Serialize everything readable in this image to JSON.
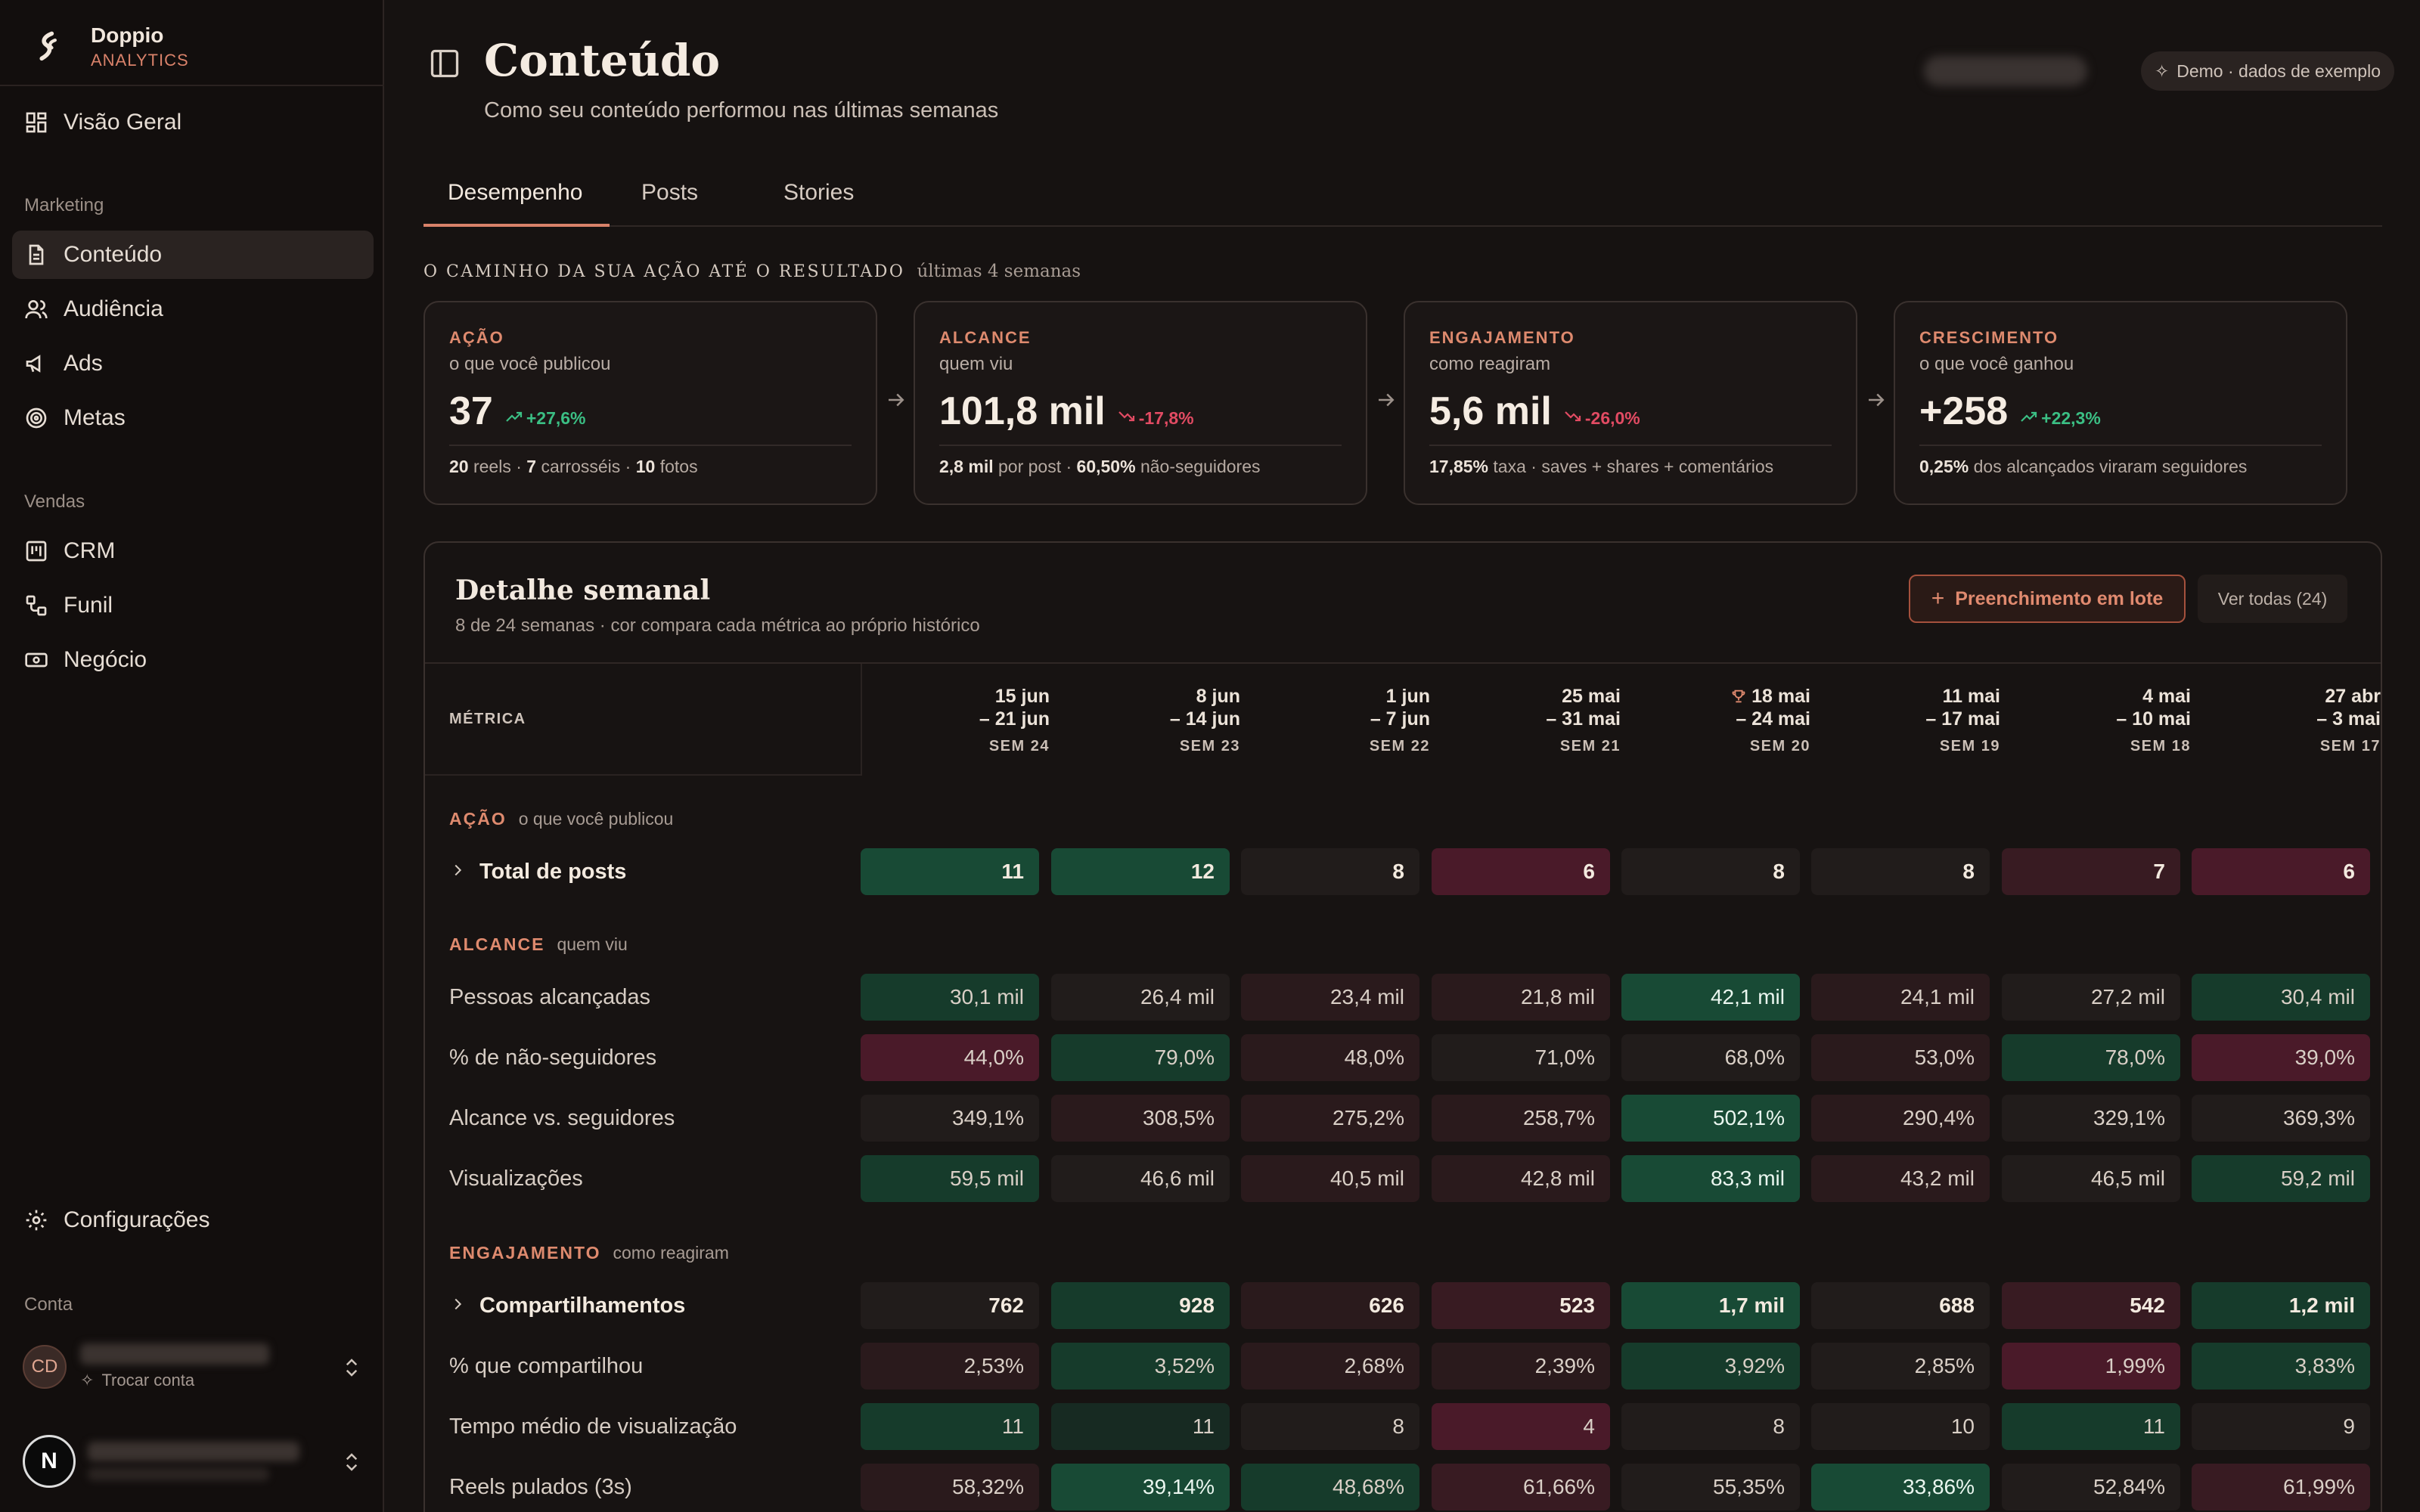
{
  "brand": {
    "name": "Doppio",
    "sub": "ANALYTICS"
  },
  "nav": {
    "overview": "Visão Geral",
    "marketing_label": "Marketing",
    "content": "Conteúdo",
    "audience": "Audiência",
    "ads": "Ads",
    "goals": "Metas",
    "sales_label": "Vendas",
    "crm": "CRM",
    "funnel": "Funil",
    "deal": "Negócio",
    "settings": "Configurações",
    "account_label": "Conta",
    "account_initials": "CD",
    "switch_account": "Trocar conta",
    "user_initial": "N"
  },
  "header": {
    "title": "Conteúdo",
    "subtitle": "Como seu conteúdo performou nas últimas semanas",
    "demo_badge": "Demo · dados de exemplo"
  },
  "tabs": [
    "Desempenho",
    "Posts",
    "Stories"
  ],
  "journey": {
    "caption": "O CAMINHO DA SUA AÇÃO ATÉ O RESULTADO",
    "hint": "últimas 4 semanas",
    "cards": [
      {
        "title": "AÇÃO",
        "sub": "o que você publicou",
        "value": "37",
        "delta": "+27,6%",
        "dir": "up",
        "foot": [
          [
            "20",
            " reels · "
          ],
          [
            "7",
            " carrosséis · "
          ],
          [
            "10",
            " fotos"
          ]
        ]
      },
      {
        "title": "ALCANCE",
        "sub": "quem viu",
        "value": "101,8 mil",
        "delta": "-17,8%",
        "dir": "down",
        "foot": [
          [
            "2,8 mil",
            " por post · "
          ],
          [
            "60,50%",
            " não-seguidores"
          ]
        ]
      },
      {
        "title": "ENGAJAMENTO",
        "sub": "como reagiram",
        "value": "5,6 mil",
        "delta": "-26,0%",
        "dir": "down",
        "foot": [
          [
            "17,85%",
            " taxa · saves + shares + comentários"
          ]
        ]
      },
      {
        "title": "CRESCIMENTO",
        "sub": "o que você ganhou",
        "value": "+258",
        "delta": "+22,3%",
        "dir": "up",
        "foot": [
          [
            "0,25%",
            " dos alcançados viraram seguidores"
          ]
        ]
      }
    ]
  },
  "detail": {
    "title": "Detalhe semanal",
    "subtitle": "8 de 24 semanas · cor compara cada métrica ao próprio histórico",
    "batch_button": "Preenchimento em lote",
    "all_button": "Ver todas (24)",
    "metric_header": "MÉTRICA",
    "weeks": [
      {
        "d1": "15 jun",
        "d2": "– 21 jun",
        "sem": "SEM 24",
        "best": false
      },
      {
        "d1": "8 jun",
        "d2": "– 14 jun",
        "sem": "SEM 23",
        "best": false
      },
      {
        "d1": "1 jun",
        "d2": "– 7 jun",
        "sem": "SEM 22",
        "best": false
      },
      {
        "d1": "25 mai",
        "d2": "– 31 mai",
        "sem": "SEM 21",
        "best": false
      },
      {
        "d1": "18 mai",
        "d2": "– 24 mai",
        "sem": "SEM 20",
        "best": true
      },
      {
        "d1": "11 mai",
        "d2": "– 17 mai",
        "sem": "SEM 19",
        "best": false
      },
      {
        "d1": "4 mai",
        "d2": "– 10 mai",
        "sem": "SEM 18",
        "best": false
      },
      {
        "d1": "27 abr",
        "d2": "– 3 mai",
        "sem": "SEM 17",
        "best": false
      }
    ],
    "groups": [
      {
        "title": "AÇÃO",
        "sub": "o que você publicou",
        "rows": [
          {
            "label": "Total de posts",
            "bold": true,
            "expand": true,
            "values": [
              "11",
              "12",
              "8",
              "6",
              "8",
              "8",
              "7",
              "6"
            ],
            "tones": [
              "g3",
              "g3",
              "n0",
              "r3",
              "n0",
              "n0",
              "r2",
              "r3"
            ]
          }
        ]
      },
      {
        "title": "ALCANCE",
        "sub": "quem viu",
        "rows": [
          {
            "label": "Pessoas alcançadas",
            "values": [
              "30,1 mil",
              "26,4 mil",
              "23,4 mil",
              "21,8 mil",
              "42,1 mil",
              "24,1 mil",
              "27,2 mil",
              "30,4 mil"
            ],
            "tones": [
              "g2",
              "n0",
              "r1",
              "r1",
              "g3",
              "r1",
              "n0",
              "g2"
            ]
          },
          {
            "label": "% de não-seguidores",
            "values": [
              "44,0%",
              "79,0%",
              "48,0%",
              "71,0%",
              "68,0%",
              "53,0%",
              "78,0%",
              "39,0%"
            ],
            "tones": [
              "r3",
              "g2",
              "r1",
              "n0",
              "n0",
              "r1",
              "g2",
              "r3"
            ]
          },
          {
            "label": "Alcance vs. seguidores",
            "values": [
              "349,1%",
              "308,5%",
              "275,2%",
              "258,7%",
              "502,1%",
              "290,4%",
              "329,1%",
              "369,3%"
            ],
            "tones": [
              "n0",
              "r1",
              "r1",
              "r1",
              "g3",
              "r1",
              "n0",
              "n0"
            ]
          },
          {
            "label": "Visualizações",
            "values": [
              "59,5 mil",
              "46,6 mil",
              "40,5 mil",
              "42,8 mil",
              "83,3 mil",
              "43,2 mil",
              "46,5 mil",
              "59,2 mil"
            ],
            "tones": [
              "g2",
              "n0",
              "r1",
              "r1",
              "g3",
              "r1",
              "n0",
              "g2"
            ]
          }
        ]
      },
      {
        "title": "ENGAJAMENTO",
        "sub": "como reagiram",
        "rows": [
          {
            "label": "Compartilhamentos",
            "bold": true,
            "expand": true,
            "values": [
              "762",
              "928",
              "626",
              "523",
              "1,7 mil",
              "688",
              "542",
              "1,2 mil"
            ],
            "tones": [
              "n0",
              "g2",
              "r1",
              "r2",
              "g3",
              "n0",
              "r2",
              "g2"
            ]
          },
          {
            "label": "% que compartilhou",
            "values": [
              "2,53%",
              "3,52%",
              "2,68%",
              "2,39%",
              "3,92%",
              "2,85%",
              "1,99%",
              "3,83%"
            ],
            "tones": [
              "r1",
              "g2",
              "r1",
              "r1",
              "g2",
              "n0",
              "r3",
              "g2"
            ]
          },
          {
            "label": "Tempo médio de visualização",
            "values": [
              "11",
              "11",
              "8",
              "4",
              "8",
              "10",
              "11",
              "9"
            ],
            "tones": [
              "g2",
              "g1",
              "n0",
              "r3",
              "n0",
              "n0",
              "g2",
              "n0"
            ]
          },
          {
            "label": "Reels pulados (3s)",
            "values": [
              "58,32%",
              "39,14%",
              "48,68%",
              "61,66%",
              "55,35%",
              "33,86%",
              "52,84%",
              "61,99%"
            ],
            "tones": [
              "r1",
              "g3",
              "g2",
              "r2",
              "n0",
              "g3",
              "n0",
              "r2"
            ]
          }
        ]
      }
    ]
  }
}
